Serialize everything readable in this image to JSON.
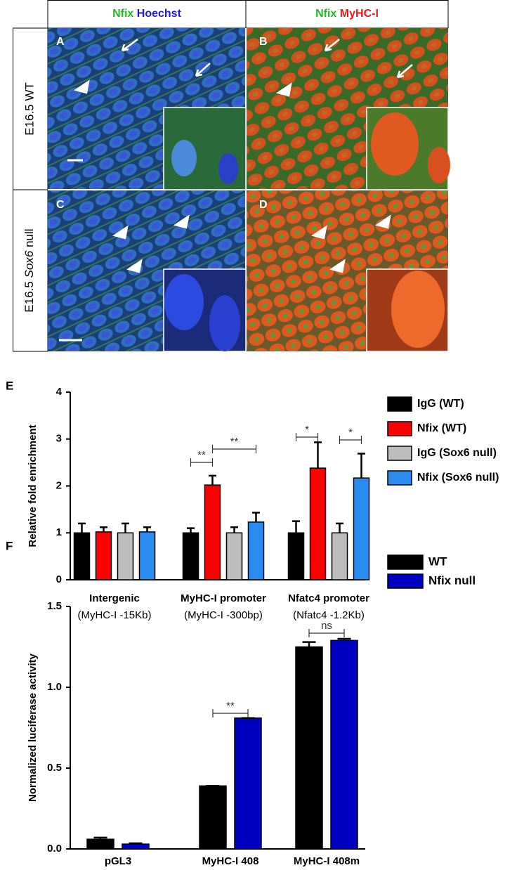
{
  "panels": {
    "columns": [
      [
        "Nfix",
        "Hoechst"
      ],
      [
        "Nfix",
        "MyHC-I"
      ]
    ],
    "rows": [
      [
        "E16.5 WT"
      ],
      [
        "E16.5",
        "Sox6",
        "null"
      ]
    ],
    "letters": [
      "A",
      "B",
      "C",
      "D"
    ]
  },
  "chart_data": [
    {
      "type": "bar",
      "panel_label": "E",
      "y_label": "Relative fold enrichment",
      "categories": [
        "Intergenic",
        "MyHC-I promoter",
        "Nfatc4 promoter"
      ],
      "category_notes": [
        "(MyHC-I -15Kb)",
        "(MyHC-I -300bp)",
        "(Nfatc4 -1.2Kb)"
      ],
      "series": [
        {
          "name": "IgG (WT)",
          "color": "#000000",
          "values": [
            1,
            1,
            1
          ],
          "errors": [
            0.2,
            0.1,
            0.25
          ]
        },
        {
          "name": "Nfix (WT)",
          "color": "#ff0000",
          "values": [
            1.02,
            2.02,
            2.38
          ],
          "errors": [
            0.1,
            0.2,
            0.55
          ]
        },
        {
          "name": "IgG (Sox6 null)",
          "color": "#bdbdbd",
          "values": [
            1,
            1,
            1
          ],
          "errors": [
            0.2,
            0.12,
            0.2
          ]
        },
        {
          "name": "Nfix (Sox6 null)",
          "color": "#2b8cf0",
          "values": [
            1.02,
            1.23,
            2.17
          ],
          "errors": [
            0.1,
            0.2,
            0.52
          ]
        }
      ],
      "ylim": [
        0,
        4
      ],
      "yticks": [
        0,
        1,
        2,
        3,
        4
      ],
      "annotations": [
        "**",
        "**",
        "*",
        "*"
      ]
    },
    {
      "type": "bar",
      "panel_label": "F",
      "y_label": "Normalized luciferase activity",
      "categories": [
        "pGL3",
        "MyHC-I 408",
        "MyHC-I 408m"
      ],
      "series": [
        {
          "name": "WT",
          "color": "#000000",
          "values": [
            0.06,
            0.39,
            1.25
          ],
          "errors": [
            0.01,
            0,
            0.03
          ]
        },
        {
          "name": "Nfix null",
          "color": "#0000c0",
          "values": [
            0.03,
            0.81,
            1.29
          ],
          "errors": [
            0.005,
            0,
            0.01
          ]
        }
      ],
      "ylim": [
        0,
        1.5
      ],
      "yticks": [
        {
          "value": 0,
          "label": "0.0"
        },
        {
          "value": 0.5,
          "label": "0.5"
        },
        {
          "value": 1,
          "label": "1.0"
        },
        {
          "value": 1.5,
          "label": "1.5"
        }
      ],
      "annotations": [
        "**",
        "ns"
      ]
    }
  ]
}
